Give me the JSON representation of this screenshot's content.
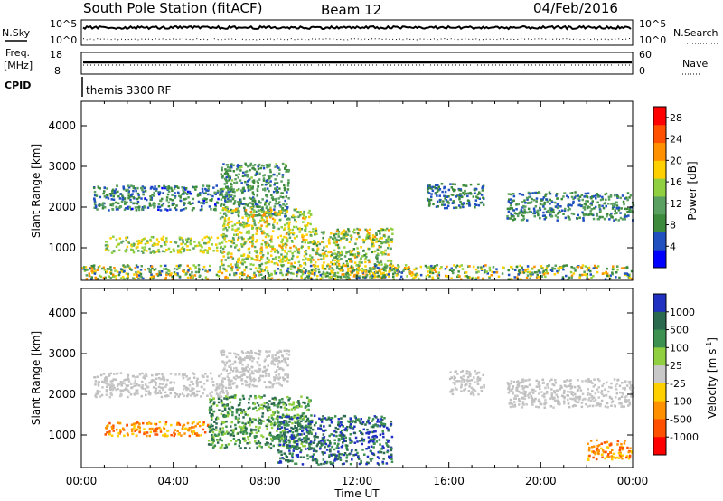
{
  "header": {
    "station": "South Pole Station (fitACF)",
    "beam": "Beam 12",
    "date": "04/Feb/2016"
  },
  "panels": {
    "nsky_label": "N.Sky",
    "nsearch_label": "N.Search",
    "freq_label_1": "Freq.",
    "freq_label_2": "[MHz]",
    "nave_label": "Nave",
    "cpid_label": "CPID",
    "cpid_value": "themis 3300 RF",
    "nsky_left_top": "10^5",
    "nsky_left_bottom": "10^0",
    "nsky_right_top": "10^5",
    "nsky_right_bottom": "10^0",
    "freq_left_top": "18",
    "freq_left_bottom": "8",
    "freq_right_top": "60",
    "freq_right_bottom": "0"
  },
  "colors": {
    "power_scale": [
      "#0000ff",
      "#2050c0",
      "#3c8a3c",
      "#5aa060",
      "#90d040",
      "#ffd000",
      "#ff9000",
      "#ff5000",
      "#ff0000"
    ],
    "velocity_scale": [
      "#2030c0",
      "#2c6a50",
      "#3c9050",
      "#90d040",
      "#c8c8c8",
      "#ffd000",
      "#ff9000",
      "#ff5000",
      "#ff0000"
    ],
    "ground_scatter": "#c0c0c0"
  },
  "chart_data": [
    {
      "type": "heatmap",
      "title": "",
      "xlabel": "",
      "ylabel": "Slant Range [km]",
      "x_ticks": [
        "00:00",
        "04:00",
        "08:00",
        "12:00",
        "16:00",
        "20:00",
        "00:00"
      ],
      "y_ticks": [
        "1000",
        "2000",
        "3000",
        "4000"
      ],
      "xlim_hours": [
        0,
        24
      ],
      "ylim_km": [
        200,
        4600
      ],
      "colorbar_label": "Power [dB]",
      "colorbar_ticks": [
        "4",
        "8",
        "12",
        "16",
        "20",
        "24",
        "28"
      ],
      "colorbar_range": [
        0,
        30
      ],
      "grid": false,
      "scatter_regions": [
        {
          "t0": 0.5,
          "t1": 6.5,
          "r0": 1950,
          "r1": 2550,
          "value": 6,
          "max": 16
        },
        {
          "t0": 6.0,
          "t1": 9.0,
          "r0": 1800,
          "r1": 3100,
          "value": 8,
          "max": 16
        },
        {
          "t0": 1.0,
          "t1": 6.0,
          "r0": 900,
          "r1": 1300,
          "value": 14,
          "max": 22
        },
        {
          "t0": 6.0,
          "t1": 10.0,
          "r0": 600,
          "r1": 2000,
          "value": 14,
          "max": 24
        },
        {
          "t0": 10.0,
          "t1": 13.5,
          "r0": 300,
          "r1": 1500,
          "value": 12,
          "max": 26
        },
        {
          "t0": 15.0,
          "t1": 17.5,
          "r0": 2000,
          "r1": 2600,
          "value": 6,
          "max": 10
        },
        {
          "t0": 18.5,
          "t1": 24.0,
          "r0": 1700,
          "r1": 2400,
          "value": 7,
          "max": 16
        },
        {
          "t0": 0.0,
          "t1": 24.0,
          "r0": 250,
          "r1": 600,
          "value": 10,
          "max": 28
        }
      ]
    },
    {
      "type": "heatmap",
      "title": "",
      "xlabel": "Time UT",
      "ylabel": "Slant Range [km]",
      "x_ticks": [
        "00:00",
        "04:00",
        "08:00",
        "12:00",
        "16:00",
        "20:00",
        "00:00"
      ],
      "y_ticks": [
        "1000",
        "2000",
        "3000",
        "4000"
      ],
      "xlim_hours": [
        0,
        24
      ],
      "ylim_km": [
        200,
        4600
      ],
      "colorbar_label": "Velocity [m s^-1]",
      "colorbar_ticks": [
        "1000",
        "500",
        "100",
        "25",
        "-25",
        "-100",
        "-500",
        "-1000"
      ],
      "grid": false,
      "scatter_regions": [
        {
          "t0": 0.5,
          "t1": 6.5,
          "r0": 1950,
          "r1": 2550,
          "class": "ground"
        },
        {
          "t0": 6.0,
          "t1": 9.0,
          "r0": 2200,
          "r1": 3100,
          "class": "ground"
        },
        {
          "t0": 1.0,
          "t1": 5.5,
          "r0": 1000,
          "r1": 1350,
          "class": "negative_500"
        },
        {
          "t0": 5.5,
          "t1": 10.0,
          "r0": 700,
          "r1": 2000,
          "class": "positive_100"
        },
        {
          "t0": 8.5,
          "t1": 13.5,
          "r0": 300,
          "r1": 1500,
          "class": "positive_500"
        },
        {
          "t0": 16.0,
          "t1": 17.5,
          "r0": 2000,
          "r1": 2600,
          "class": "ground"
        },
        {
          "t0": 18.5,
          "t1": 24.0,
          "r0": 1700,
          "r1": 2400,
          "class": "ground"
        },
        {
          "t0": 22.0,
          "t1": 24.0,
          "r0": 400,
          "r1": 900,
          "class": "negative_500"
        }
      ]
    }
  ]
}
